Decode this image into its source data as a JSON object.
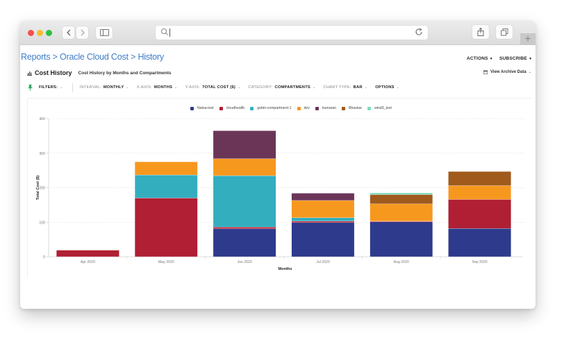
{
  "browser": {
    "url_value": "",
    "new_tab_label": "+"
  },
  "breadcrumb": {
    "items": [
      "Reports",
      "Oracle Cloud Cost",
      "History"
    ],
    "separator": ">"
  },
  "header_actions": {
    "actions_label": "ACTIONS",
    "subscribe_label": "SUBSCRIBE"
  },
  "section": {
    "title": "Cost History",
    "subtitle": "Cost History by Months and Compartments",
    "archive_label": "View Archive Data"
  },
  "filters": {
    "filters_label": "FILTERS:",
    "interval_label": "INTERVAL:",
    "interval_value": "MONTHLY",
    "xaxis_label": "X-AXIS:",
    "xaxis_value": "MONTHS",
    "yaxis_label": "Y-AXIS:",
    "yaxis_value": "TOTAL COST ($)",
    "category_label": "CATEGORY:",
    "category_value": "COMPARTMENTS",
    "charttype_label": "CHART TYPE:",
    "charttype_value": "BAR",
    "options_label": "OPTIONS"
  },
  "colors": {
    "Naina-test": "#2e3a8c",
    "cloudhealth": "#b01f33",
    "gobin-compartment-1": "#33aebf",
    "dev": "#f7981e",
    "kumaran": "#6b3558",
    "Bhaskar": "#a05a1c",
    "wind3_test": "#7fdcc0",
    "link": "#3d7cc9"
  },
  "chart_data": {
    "type": "bar",
    "stacked": true,
    "title": "Cost History by Months and Compartments",
    "xlabel": "Months",
    "ylabel": "Total Cost ($)",
    "ylim": [
      0,
      400
    ],
    "yticks": [
      0,
      100,
      200,
      300,
      400
    ],
    "grid": true,
    "legend_position": "top",
    "categories": [
      "Apr 2020",
      "May 2020",
      "Jun 2020",
      "Jul 2020",
      "Aug 2020",
      "Sep 2020"
    ],
    "series": [
      {
        "name": "Naina-test",
        "values": [
          0,
          0,
          81,
          99,
          101,
          82
        ]
      },
      {
        "name": "cloudhealth",
        "values": [
          19,
          170,
          5,
          4,
          2,
          84
        ]
      },
      {
        "name": "gobin-compartment-1",
        "values": [
          0,
          67,
          149,
          10,
          0,
          0
        ]
      },
      {
        "name": "dev",
        "values": [
          1,
          38,
          49,
          50,
          50,
          40
        ]
      },
      {
        "name": "kumaran",
        "values": [
          0,
          0,
          81,
          21,
          0,
          0
        ]
      },
      {
        "name": "Bhaskar",
        "values": [
          0,
          0,
          0,
          0,
          27,
          41
        ]
      },
      {
        "name": "wind3_test",
        "values": [
          0,
          0,
          0,
          0,
          5,
          0
        ]
      }
    ]
  }
}
